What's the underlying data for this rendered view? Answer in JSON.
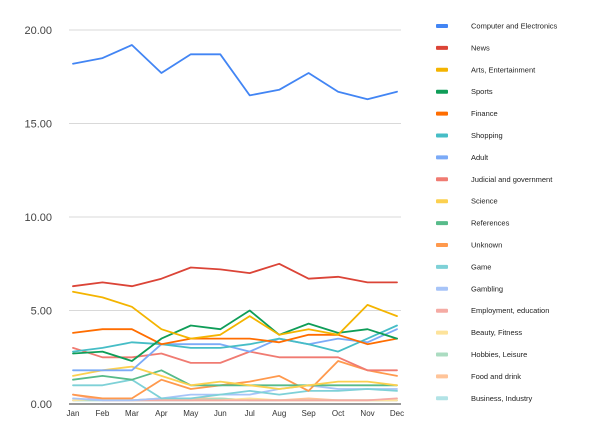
{
  "chart_data": {
    "type": "line",
    "title": "",
    "xlabel": "",
    "ylabel": "",
    "categories": [
      "Jan",
      "Feb",
      "Mar",
      "Apr",
      "May",
      "Jun",
      "Jul",
      "Aug",
      "Sep",
      "Oct",
      "Nov",
      "Dec"
    ],
    "ylim": [
      0,
      20
    ],
    "yticks": [
      "0.00",
      "5.00",
      "10.00",
      "15.00",
      "20.00"
    ],
    "grid": true,
    "legend_position": "right",
    "series": [
      {
        "name": "Computer and Electronics",
        "color": "#4285f4",
        "values": [
          18.2,
          18.5,
          19.2,
          17.7,
          18.7,
          18.7,
          16.5,
          16.8,
          17.7,
          16.7,
          16.3,
          16.7
        ]
      },
      {
        "name": "News",
        "color": "#db4437",
        "values": [
          6.3,
          6.5,
          6.3,
          6.7,
          7.3,
          7.2,
          7.0,
          7.5,
          6.7,
          6.8,
          6.5,
          6.5
        ]
      },
      {
        "name": "Arts, Entertainment",
        "color": "#f4b400",
        "values": [
          6.0,
          5.7,
          5.2,
          4.0,
          3.5,
          3.7,
          4.7,
          3.7,
          4.0,
          3.7,
          5.3,
          4.7
        ]
      },
      {
        "name": "Sports",
        "color": "#0f9d58",
        "values": [
          2.7,
          2.8,
          2.3,
          3.5,
          4.2,
          4.0,
          5.0,
          3.7,
          4.3,
          3.8,
          4.0,
          3.5
        ]
      },
      {
        "name": "Finance",
        "color": "#ff6d00",
        "values": [
          3.8,
          4.0,
          4.0,
          3.2,
          3.5,
          3.5,
          3.5,
          3.3,
          3.7,
          3.7,
          3.2,
          3.5
        ]
      },
      {
        "name": "Shopping",
        "color": "#46bdc6",
        "values": [
          2.8,
          3.0,
          3.3,
          3.2,
          3.0,
          3.0,
          3.2,
          3.5,
          3.2,
          2.8,
          3.5,
          4.2
        ]
      },
      {
        "name": "Adult",
        "color": "#7baaf7",
        "values": [
          1.8,
          1.8,
          1.8,
          3.2,
          3.2,
          3.2,
          2.8,
          3.5,
          3.2,
          3.5,
          3.3,
          4.0
        ]
      },
      {
        "name": "Judicial and government",
        "color": "#f07b72",
        "values": [
          3.0,
          2.5,
          2.5,
          2.7,
          2.2,
          2.2,
          2.8,
          2.5,
          2.5,
          2.5,
          1.8,
          1.8
        ]
      },
      {
        "name": "Science",
        "color": "#fcd04f",
        "values": [
          1.5,
          1.8,
          2.0,
          1.5,
          1.0,
          1.2,
          1.0,
          0.8,
          1.0,
          1.2,
          1.2,
          1.0
        ]
      },
      {
        "name": "References",
        "color": "#57bb8a",
        "values": [
          1.3,
          1.5,
          1.3,
          1.8,
          1.0,
          1.0,
          1.0,
          1.0,
          1.0,
          1.0,
          1.0,
          1.0
        ]
      },
      {
        "name": "Unknown",
        "color": "#ff994d",
        "values": [
          0.5,
          0.3,
          0.3,
          1.3,
          0.8,
          1.0,
          1.2,
          1.5,
          0.7,
          2.3,
          1.8,
          1.5
        ]
      },
      {
        "name": "Game",
        "color": "#7ed1d7",
        "values": [
          1.0,
          1.0,
          1.3,
          0.3,
          0.3,
          0.5,
          0.7,
          0.5,
          0.7,
          0.7,
          0.8,
          0.7
        ]
      },
      {
        "name": "Gambling",
        "color": "#a7c4f8",
        "values": [
          0.3,
          0.2,
          0.2,
          0.3,
          0.5,
          0.5,
          0.5,
          0.8,
          1.0,
          0.8,
          0.8,
          0.8
        ]
      },
      {
        "name": "Employment, education",
        "color": "#f5aba4",
        "values": [
          0.5,
          0.2,
          0.2,
          0.2,
          0.2,
          0.2,
          0.2,
          0.2,
          0.2,
          0.2,
          0.2,
          0.3
        ]
      },
      {
        "name": "Beauty, Fitness",
        "color": "#fde39b",
        "values": [
          0.2,
          0.3,
          0.2,
          0.3,
          0.2,
          0.2,
          0.3,
          0.2,
          0.2,
          0.2,
          0.2,
          0.2
        ]
      },
      {
        "name": "Hobbies, Leisure",
        "color": "#abdcc1",
        "values": [
          0.2,
          0.2,
          0.2,
          0.2,
          0.2,
          0.3,
          0.2,
          0.2,
          0.2,
          0.2,
          0.2,
          0.2
        ]
      },
      {
        "name": "Food and drink",
        "color": "#ffc499",
        "values": [
          0.2,
          0.3,
          0.2,
          0.3,
          0.3,
          0.3,
          0.2,
          0.2,
          0.3,
          0.2,
          0.2,
          0.2
        ]
      },
      {
        "name": "Business, Industry",
        "color": "#b2e3e6",
        "values": [
          0.2,
          0.2,
          0.2,
          0.2,
          0.2,
          0.2,
          0.2,
          0.2,
          0.2,
          0.2,
          0.2,
          0.2
        ]
      }
    ]
  }
}
